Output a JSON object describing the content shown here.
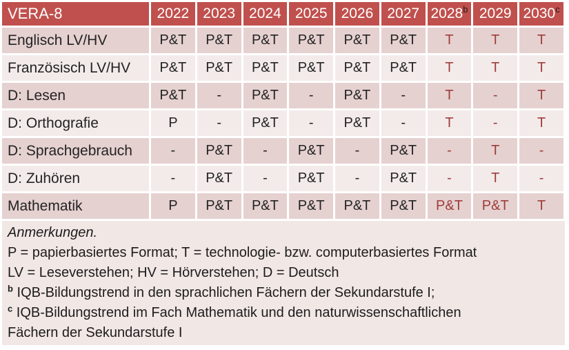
{
  "table": {
    "title": "VERA-8",
    "years": [
      "2022",
      "2023",
      "2024",
      "2025",
      "2026",
      "2027",
      "2028",
      "2029",
      "2030"
    ],
    "year_superscripts": [
      "",
      "",
      "",
      "",
      "",
      "",
      "b",
      "",
      "c"
    ],
    "tech_only_from_index": 6,
    "rows": [
      {
        "label": "Englisch LV/HV",
        "values": [
          "P&T",
          "P&T",
          "P&T",
          "P&T",
          "P&T",
          "P&T",
          "T",
          "T",
          "T"
        ]
      },
      {
        "label": "Französisch LV/HV",
        "values": [
          "P&T",
          "P&T",
          "P&T",
          "P&T",
          "P&T",
          "P&T",
          "T",
          "T",
          "T"
        ]
      },
      {
        "label": "D: Lesen",
        "values": [
          "P&T",
          "-",
          "P&T",
          "-",
          "P&T",
          "-",
          "T",
          "-",
          "T"
        ]
      },
      {
        "label": "D: Orthografie",
        "values": [
          "P",
          "-",
          "P&T",
          "-",
          "P&T",
          "-",
          "T",
          "-",
          "T"
        ]
      },
      {
        "label": "D: Sprachgebrauch",
        "values": [
          "-",
          "P&T",
          "-",
          "P&T",
          "-",
          "P&T",
          "-",
          "T",
          "-"
        ]
      },
      {
        "label": "D: Zuhören",
        "values": [
          "-",
          "P&T",
          "-",
          "P&T",
          "-",
          "P&T",
          "-",
          "T",
          "-"
        ]
      },
      {
        "label": "Mathematik",
        "values": [
          "P",
          "P&T",
          "P&T",
          "P&T",
          "P&T",
          "P&T",
          "P&T",
          "P&T",
          "T"
        ]
      }
    ]
  },
  "notes": {
    "heading": "Anmerkungen.",
    "formats_line": "P = papierbasiertes Format; T = technologie- bzw. computerbasiertes Format",
    "abbrev_line": "LV = Leseverstehen; HV = Hörverstehen; D = Deutsch",
    "note_b_marker": "b",
    "note_b_text": "IQB-Bildungstrend in den sprachlichen Fächern der Sekundarstufe I;",
    "note_c_marker": "c",
    "note_c_text": "IQB-Bildungstrend im Fach Mathematik und den naturwissenschaftlichen Fächern der Sekundarstufe I"
  },
  "colors": {
    "header_bg": "#C0504D",
    "header_text": "#FFFFFF",
    "header_sup": "#1A1A1A",
    "band_dark": "#E5D1D0",
    "band_light": "#F3EBEA",
    "notes_bg": "#F1E7E5",
    "tech_text": "#9E3D39",
    "body_text": "#232323"
  }
}
